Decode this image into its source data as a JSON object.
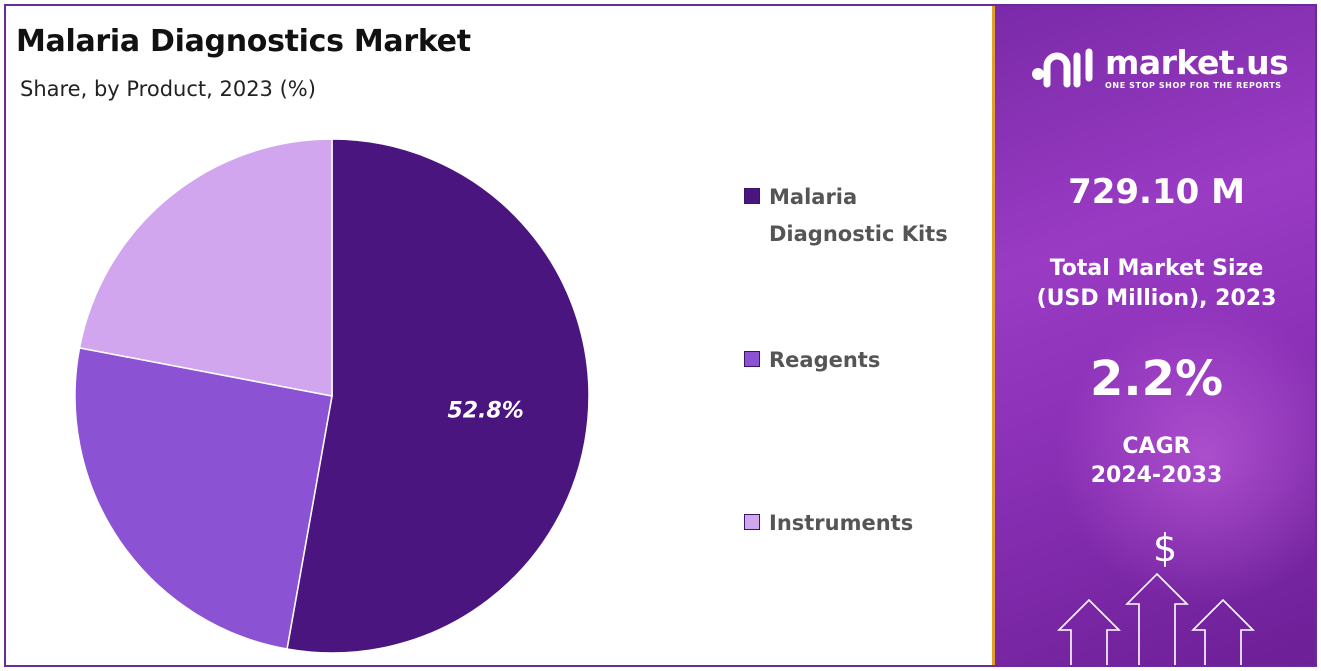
{
  "header": {
    "title": "Malaria Diagnostics Market",
    "subtitle": "Share, by Product, 2023 (%)"
  },
  "chart_data": {
    "type": "pie",
    "title": "Malaria Diagnostics Market",
    "subtitle": "Share, by Product, 2023 (%)",
    "categories": [
      "Malaria Diagnostic Kits",
      "Reagents",
      "Instruments"
    ],
    "values": [
      52.8,
      25.2,
      22.0
    ],
    "colors": [
      "#4b1580",
      "#8b52d4",
      "#d1a6ee"
    ],
    "data_labels": [
      "52.8%",
      "",
      ""
    ],
    "legend_position": "right"
  },
  "legend": {
    "items": [
      {
        "label_line1": "Malaria",
        "label_line2": "Diagnostic Kits",
        "color": "#4b1580"
      },
      {
        "label_line1": "Reagents",
        "label_line2": "",
        "color": "#8b52d4"
      },
      {
        "label_line1": "Instruments",
        "label_line2": "",
        "color": "#d1a6ee"
      }
    ]
  },
  "side_panel": {
    "brand_name": "market.us",
    "brand_tagline": "ONE STOP SHOP FOR THE REPORTS",
    "market_size_value": "729.10 M",
    "market_size_label_line1": "Total Market Size",
    "market_size_label_line2": "(USD Million), 2023",
    "cagr_value": "2.2%",
    "cagr_label_line1": "CAGR",
    "cagr_label_line2": "2024-2033",
    "dollar_symbol": "$",
    "icons": [
      "market-us-logo-icon",
      "dollar-icon",
      "growth-arrows-icon"
    ],
    "accent_color": "#e0a030",
    "panel_color": "#8a30b6"
  }
}
